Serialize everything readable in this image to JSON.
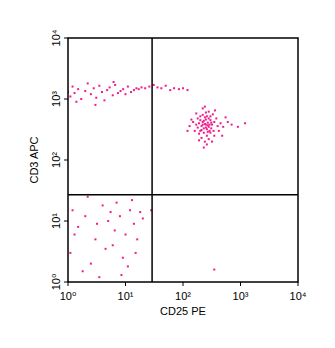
{
  "chart_data": {
    "type": "scatter",
    "log": true,
    "grid": false,
    "color": "#ee1c8c",
    "marker": "square",
    "x_label": "CD25 PE",
    "y_label": "CD3 APC",
    "xlim": [
      1,
      10000
    ],
    "ylim": [
      1,
      10000
    ],
    "xticks": [
      {
        "value": 1,
        "label": "10⁰"
      },
      {
        "value": 10,
        "label": "10¹"
      },
      {
        "value": 100,
        "label": "10²"
      },
      {
        "value": 1000,
        "label": "10³"
      },
      {
        "value": 10000,
        "label": "10⁴"
      }
    ],
    "yticks": [
      {
        "value": 1,
        "label": "10⁰"
      },
      {
        "value": 10,
        "label": "10¹"
      },
      {
        "value": 100,
        "label": "10²"
      },
      {
        "value": 1000,
        "label": "10³"
      },
      {
        "value": 10000,
        "label": "10⁴"
      }
    ],
    "quadrant": {
      "x": 29,
      "y": 27
    },
    "x": [
      1.0,
      1.1,
      1.2,
      1.3,
      1.5,
      1.7,
      2.0,
      2.2,
      2.5,
      2.8,
      3.1,
      3.5,
      3.9,
      4.3,
      4.8,
      5.3,
      6.0,
      6.6,
      7.4,
      8.2,
      9.1,
      10,
      11,
      12.5,
      14,
      15.5,
      17,
      19,
      22,
      26,
      31,
      36,
      42,
      50,
      60,
      70,
      85,
      1.4,
      3.0,
      6.2,
      100,
      120,
      250,
      220,
      280,
      200,
      300,
      240,
      260,
      190,
      320,
      230,
      270,
      210,
      290,
      250,
      180,
      350,
      240,
      200,
      310,
      260,
      220,
      280,
      170,
      400,
      230,
      270,
      250,
      300,
      190,
      340,
      150,
      450,
      210,
      280,
      240,
      500,
      160,
      380,
      220,
      260,
      600,
      130,
      330,
      200,
      290,
      250,
      230,
      270,
      210,
      310,
      350,
      180,
      420,
      140,
      550,
      240,
      190,
      300,
      260,
      220,
      700,
      120,
      480,
      360,
      280,
      1200,
      900,
      230,
      170,
      320,
      1.2,
      1.5,
      2,
      1.1,
      3,
      4,
      5,
      2.5,
      6,
      8,
      10,
      12,
      15,
      1.8,
      7,
      9,
      3.5,
      14,
      18,
      1.3,
      4.5,
      11,
      2.2,
      6.5,
      16,
      20,
      13,
      8.5,
      5.5,
      3.2,
      28,
      350
    ],
    "y": [
      1300,
      1100,
      1600,
      1250,
      1450,
      1000,
      1350,
      1800,
      1200,
      1500,
      1050,
      1650,
      1300,
      950,
      1400,
      1550,
      1150,
      1700,
      1250,
      1350,
      1450,
      1200,
      1600,
      1300,
      1400,
      1500,
      1450,
      1550,
      1500,
      1600,
      1700,
      1550,
      1500,
      1650,
      1400,
      1500,
      1450,
      900,
      800,
      1900,
      1500,
      1400,
      380,
      420,
      350,
      300,
      450,
      500,
      320,
      400,
      380,
      280,
      410,
      360,
      300,
      460,
      340,
      420,
      390,
      450,
      330,
      250,
      550,
      480,
      380,
      360,
      330,
      290,
      600,
      520,
      270,
      300,
      420,
      400,
      230,
      620,
      200,
      350,
      300,
      480,
      700,
      180,
      420,
      360,
      560,
      520,
      380,
      340,
      440,
      370,
      310,
      410,
      250,
      480,
      300,
      460,
      500,
      750,
      210,
      280,
      520,
      380,
      380,
      300,
      250,
      650,
      220,
      400,
      350,
      160,
      580,
      200,
      15,
      8,
      12,
      3,
      5,
      18,
      10,
      2,
      4,
      12,
      6,
      15,
      3,
      1.5,
      20,
      2.5,
      1.2,
      9,
      14,
      6,
      3.5,
      1.8,
      25,
      7,
      5,
      11,
      22,
      1.3,
      14,
      9,
      15,
      1.6
    ]
  }
}
